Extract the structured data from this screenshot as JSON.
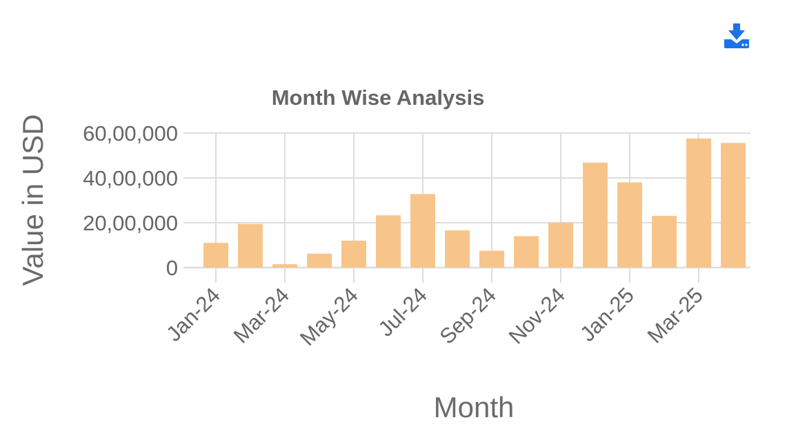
{
  "toolbar": {
    "download_icon": "download-icon",
    "icon_color": "#1a73e8"
  },
  "chart_data": {
    "type": "bar",
    "title": "Month Wise Analysis",
    "xlabel": "Month",
    "ylabel": "Value in USD",
    "categories": [
      "Jan-24",
      "Feb-24",
      "Mar-24",
      "Apr-24",
      "May-24",
      "Jun-24",
      "Jul-24",
      "Aug-24",
      "Sep-24",
      "Oct-24",
      "Nov-24",
      "Dec-24",
      "Jan-25",
      "Feb-25",
      "Mar-25",
      "Apr-25"
    ],
    "tick_labels": [
      "Jan-24",
      "Mar-24",
      "May-24",
      "Jul-24",
      "Sep-24",
      "Nov-24",
      "Jan-25",
      "Mar-25"
    ],
    "yticks": [
      0,
      2000000,
      4000000,
      6000000
    ],
    "ytick_labels": [
      "0",
      "20,00,000",
      "40,00,000",
      "60,00,000"
    ],
    "values": [
      1100000,
      1950000,
      150000,
      620000,
      1200000,
      2330000,
      3280000,
      1660000,
      750000,
      1400000,
      2000000,
      4680000,
      3800000,
      2310000,
      5760000,
      5560000
    ],
    "ylim": [
      0,
      6000000
    ],
    "grid": true,
    "bar_color": "#f7c58a",
    "grid_color": "#dddddd"
  }
}
